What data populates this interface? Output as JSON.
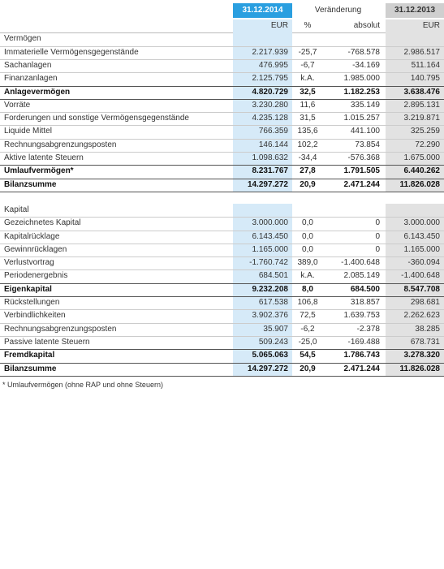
{
  "header": {
    "col1": "31.12.2014",
    "change": "Veränderung",
    "col4": "31.12.2013"
  },
  "units": [
    "EUR",
    "%",
    "absolut",
    "EUR"
  ],
  "sections": [
    {
      "title": "Vermögen",
      "rows": [
        {
          "label": "Immaterielle Vermögensgegenstände",
          "cells": [
            "2.217.939",
            "-25,7",
            "-768.578",
            "2.986.517"
          ]
        },
        {
          "label": "Sachanlagen",
          "cells": [
            "476.995",
            "-6,7",
            "-34.169",
            "511.164"
          ]
        },
        {
          "label": "Finanzanlagen",
          "cells": [
            "2.125.795",
            "k.A.",
            "1.985.000",
            "140.795"
          ]
        },
        {
          "label": "Anlagevermögen",
          "cells": [
            "4.820.729",
            "32,5",
            "1.182.253",
            "3.638.476"
          ],
          "bold": true
        },
        {
          "label": "Vorräte",
          "cells": [
            "3.230.280",
            "11,6",
            "335.149",
            "2.895.131"
          ]
        },
        {
          "label": "Forderungen und sonstige Vermögensgegenstände",
          "cells": [
            "4.235.128",
            "31,5",
            "1.015.257",
            "3.219.871"
          ]
        },
        {
          "label": "Liquide Mittel",
          "cells": [
            "766.359",
            "135,6",
            "441.100",
            "325.259"
          ]
        },
        {
          "label": "Rechnungsabgrenzungsposten",
          "cells": [
            "146.144",
            "102,2",
            "73.854",
            "72.290"
          ]
        },
        {
          "label": "Aktive latente Steuern",
          "cells": [
            "1.098.632",
            "-34,4",
            "-576.368",
            "1.675.000"
          ]
        },
        {
          "label": "Umlaufvermögen*",
          "cells": [
            "8.231.767",
            "27,8",
            "1.791.505",
            "6.440.262"
          ],
          "bold": true
        },
        {
          "label": "Bilanzsumme",
          "cells": [
            "14.297.272",
            "20,9",
            "2.471.244",
            "11.826.028"
          ],
          "bold": true
        }
      ]
    },
    {
      "title": "Kapital",
      "rows": [
        {
          "label": "Gezeichnetes Kapital",
          "cells": [
            "3.000.000",
            "0,0",
            "0",
            "3.000.000"
          ]
        },
        {
          "label": "Kapitalrücklage",
          "cells": [
            "6.143.450",
            "0,0",
            "0",
            "6.143.450"
          ]
        },
        {
          "label": "Gewinnrücklagen",
          "cells": [
            "1.165.000",
            "0,0",
            "0",
            "1.165.000"
          ]
        },
        {
          "label": "Verlustvortrag",
          "cells": [
            "-1.760.742",
            "389,0",
            "-1.400.648",
            "-360.094"
          ]
        },
        {
          "label": "Periodenergebnis",
          "cells": [
            "684.501",
            "k.A.",
            "2.085.149",
            "-1.400.648"
          ]
        },
        {
          "label": "Eigenkapital",
          "cells": [
            "9.232.208",
            "8,0",
            "684.500",
            "8.547.708"
          ],
          "bold": true
        },
        {
          "label": "Rückstellungen",
          "cells": [
            "617.538",
            "106,8",
            "318.857",
            "298.681"
          ]
        },
        {
          "label": "Verbindlichkeiten",
          "cells": [
            "3.902.376",
            "72,5",
            "1.639.753",
            "2.262.623"
          ]
        },
        {
          "label": "Rechnungsabgrenzungsposten",
          "cells": [
            "35.907",
            "-6,2",
            "-2.378",
            "38.285"
          ]
        },
        {
          "label": "Passive latente Steuern",
          "cells": [
            "509.243",
            "-25,0",
            "-169.488",
            "678.731"
          ]
        },
        {
          "label": "Fremdkapital",
          "cells": [
            "5.065.063",
            "54,5",
            "1.786.743",
            "3.278.320"
          ],
          "bold": true
        },
        {
          "label": "Bilanzsumme",
          "cells": [
            "14.297.272",
            "20,9",
            "2.471.244",
            "11.826.028"
          ],
          "bold": true
        }
      ]
    }
  ],
  "footnote": "* Umlaufvermögen (ohne RAP und ohne Steuern)"
}
